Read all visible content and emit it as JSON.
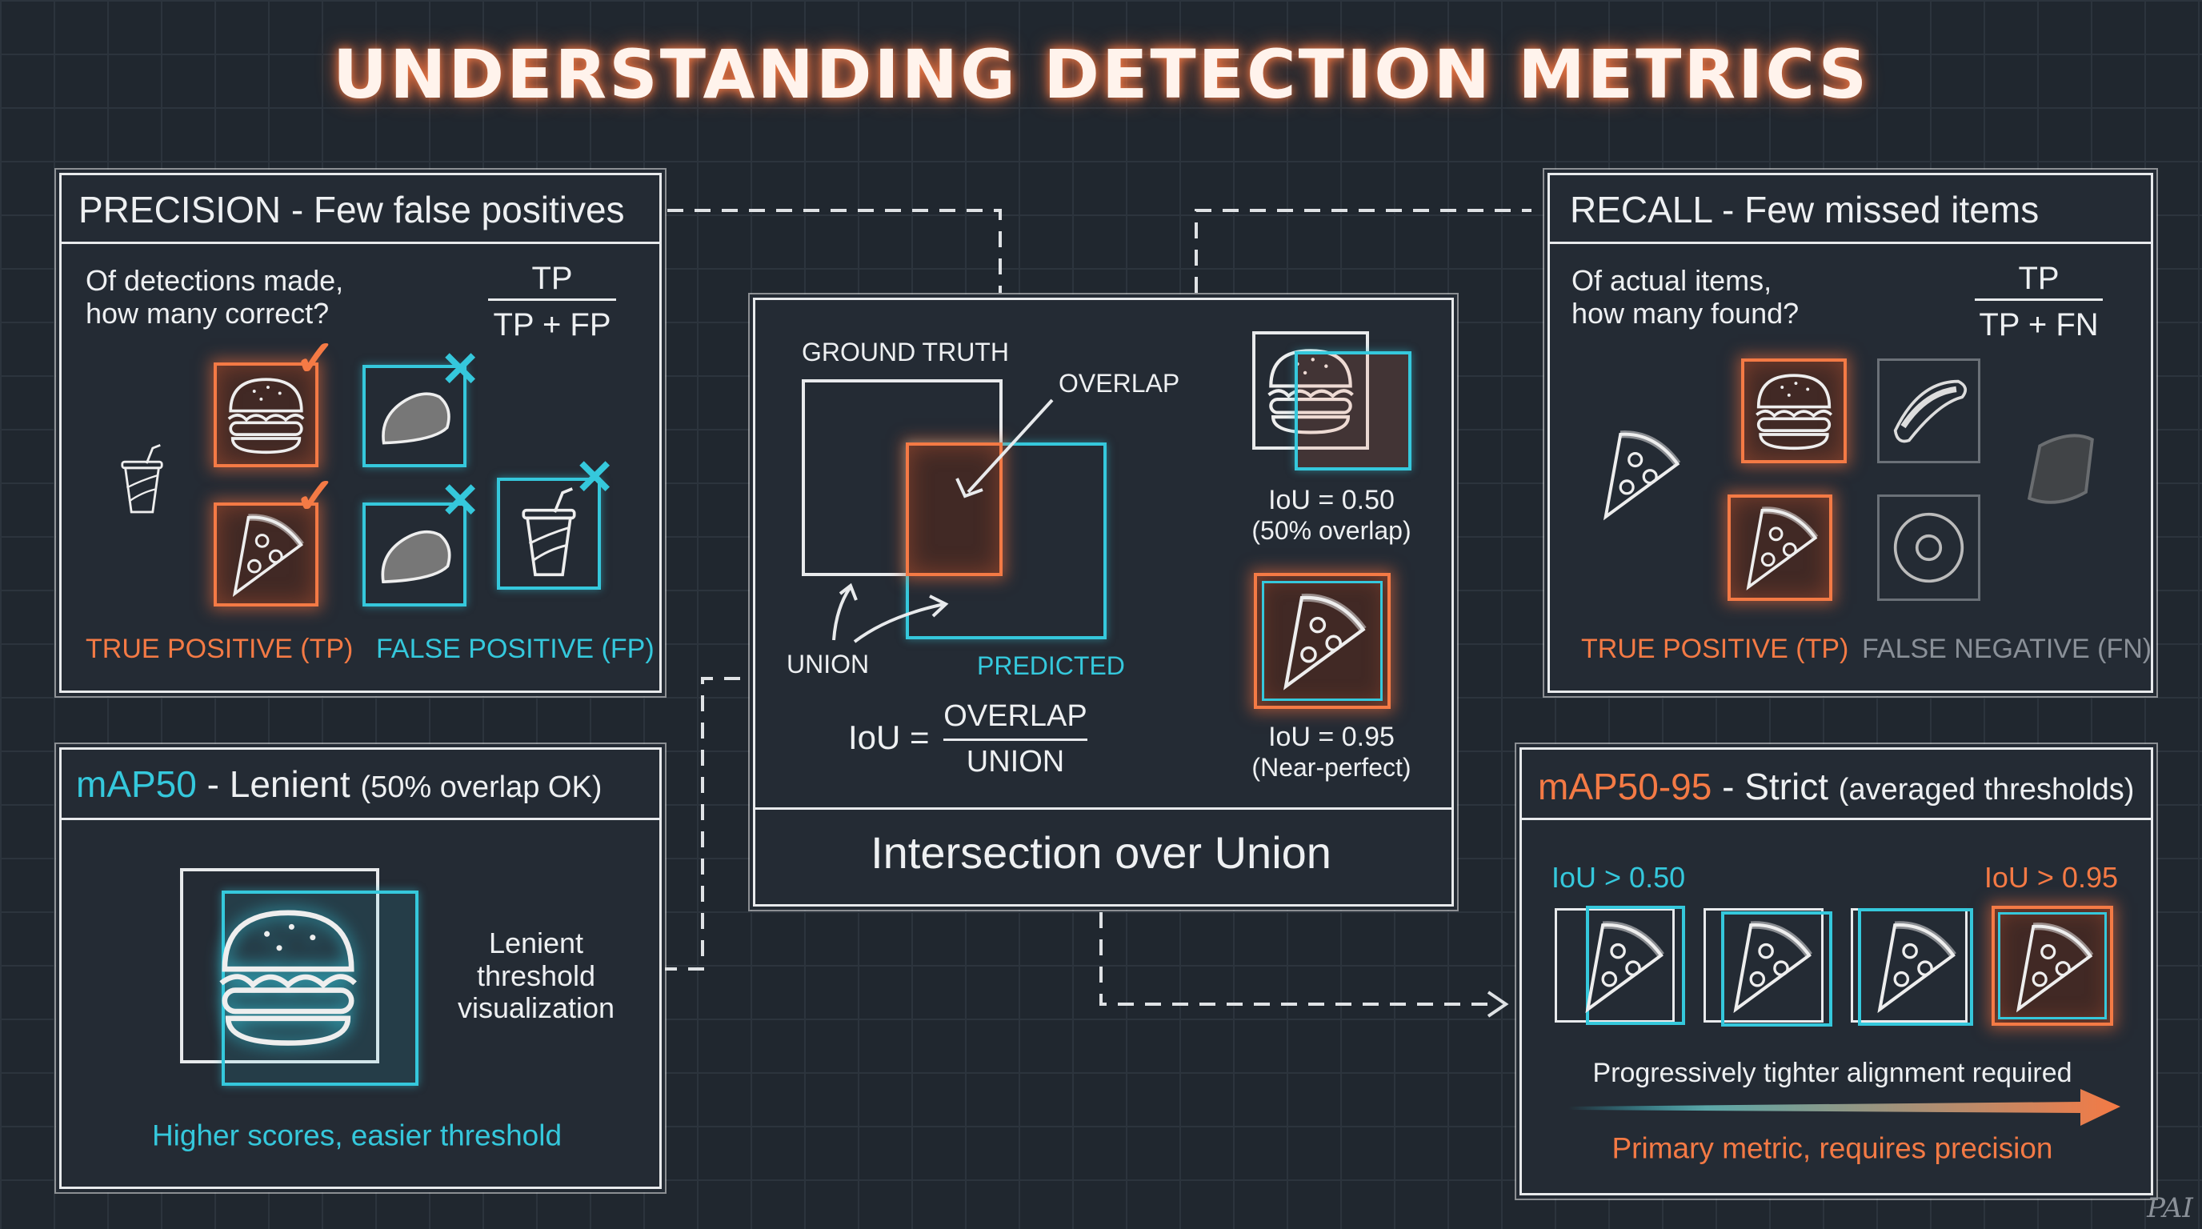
{
  "title": "UNDERSTANDING DETECTION METRICS",
  "colors": {
    "background": "#20272f",
    "orange": "#f47a45",
    "cyan": "#35c8dc",
    "chalk": "#e8eaec",
    "muted": "#8a9098"
  },
  "precision": {
    "header": "PRECISION - Few false positives",
    "question_line1": "Of detections made,",
    "question_line2": "how many correct?",
    "numerator": "TP",
    "denominator": "TP + FP",
    "tp_label": "TRUE POSITIVE (TP)",
    "fp_label": "FALSE POSITIVE (FP)",
    "icons": [
      "cup-icon",
      "burger-icon",
      "pizza-icon",
      "rock-icon",
      "cup-icon"
    ]
  },
  "recall": {
    "header": "RECALL - Few missed items",
    "question_line1": "Of actual items,",
    "question_line2": "how many found?",
    "numerator": "TP",
    "denominator": "TP + FN",
    "tp_label": "TRUE POSITIVE (TP)",
    "fn_label": "FALSE NEGATIVE (FN)",
    "icons": [
      "pizza-icon",
      "burger-icon",
      "hotdog-icon",
      "donut-icon",
      "burrito-icon"
    ]
  },
  "iou": {
    "ground_truth_label": "GROUND TRUTH",
    "overlap_label": "OVERLAP",
    "union_label": "UNION",
    "predicted_label": "PREDICTED",
    "formula_lhs": "IoU =",
    "formula_numerator": "OVERLAP",
    "formula_denominator": "UNION",
    "example1_value": "IoU = 0.50",
    "example1_note": "(50% overlap)",
    "example2_value": "IoU = 0.95",
    "example2_note": "(Near-perfect)",
    "footer": "Intersection over Union"
  },
  "map50": {
    "header_metric": "mAP50",
    "header_sep": " - Lenient ",
    "header_note": "(50% overlap OK)",
    "side_line1": "Lenient",
    "side_line2": "threshold",
    "side_line3": "visualization",
    "caption": "Higher scores, easier threshold"
  },
  "map5095": {
    "header_metric": "mAP50-95",
    "header_sep": " - Strict ",
    "header_note": "(averaged thresholds)",
    "low_threshold": "IoU > 0.50",
    "high_threshold": "IoU > 0.95",
    "progress_text": "Progressively tighter alignment required",
    "caption": "Primary metric, requires precision"
  },
  "watermark": "PAI"
}
